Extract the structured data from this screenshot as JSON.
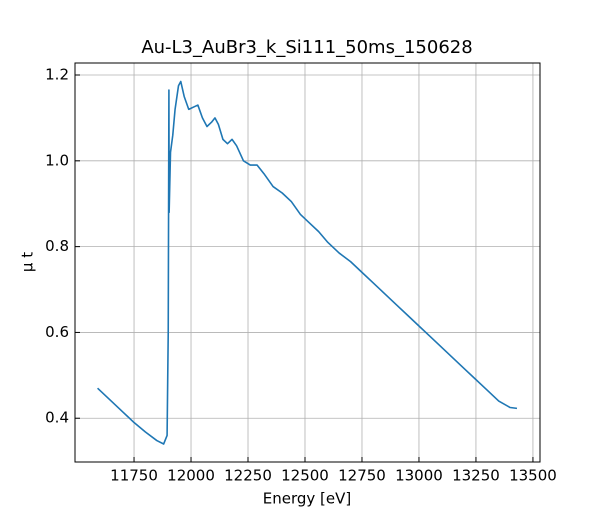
{
  "chart_data": {
    "type": "line",
    "title": "Au-L3_AuBr3_k_Si111_50ms_150628",
    "xlabel": "Energy [eV]",
    "ylabel": "μ t",
    "x": [
      11590,
      11650,
      11700,
      11750,
      11800,
      11850,
      11880,
      11895,
      11900,
      11903,
      11904,
      11910,
      11920,
      11930,
      11945,
      11955,
      11970,
      11990,
      12010,
      12030,
      12050,
      12070,
      12090,
      12105,
      12120,
      12140,
      12160,
      12180,
      12200,
      12230,
      12260,
      12290,
      12320,
      12360,
      12400,
      12440,
      12480,
      12520,
      12560,
      12600,
      12650,
      12700,
      12750,
      12800,
      12850,
      12900,
      12950,
      13000,
      13050,
      13100,
      13150,
      13200,
      13250,
      13300,
      13350,
      13400,
      13430
    ],
    "series": [
      {
        "name": "μ t",
        "color": "#1f77b4",
        "values": [
          0.47,
          0.44,
          0.415,
          0.39,
          0.368,
          0.348,
          0.34,
          0.36,
          0.6,
          1.165,
          0.88,
          1.02,
          1.06,
          1.12,
          1.175,
          1.185,
          1.15,
          1.12,
          1.125,
          1.13,
          1.1,
          1.08,
          1.09,
          1.1,
          1.085,
          1.05,
          1.04,
          1.05,
          1.035,
          1.0,
          0.99,
          0.99,
          0.97,
          0.94,
          0.925,
          0.905,
          0.875,
          0.855,
          0.835,
          0.81,
          0.785,
          0.765,
          0.74,
          0.715,
          0.69,
          0.665,
          0.64,
          0.615,
          0.59,
          0.565,
          0.54,
          0.515,
          0.49,
          0.465,
          0.44,
          0.425,
          0.423
        ]
      }
    ],
    "xlim": [
      11491,
      13531
    ],
    "xticks": [
      11750,
      12000,
      12250,
      12500,
      12750,
      13000,
      13250,
      13500
    ],
    "ylim": [
      0.298,
      1.228
    ],
    "yticks": [
      0.4,
      0.6,
      0.8,
      {
        "value": 1,
        "label": "1.0"
      },
      1.2
    ],
    "grid": true
  }
}
